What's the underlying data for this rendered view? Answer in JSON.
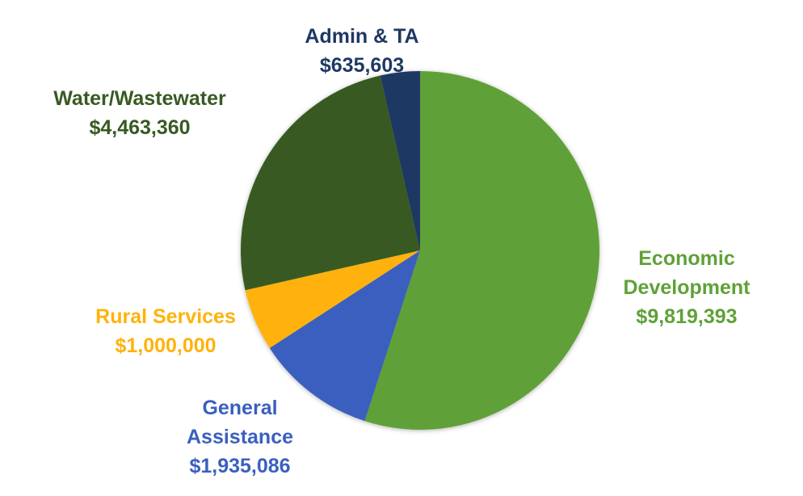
{
  "chart_data": {
    "type": "pie",
    "title": "",
    "start": "12 o'clock, clockwise",
    "slices": [
      {
        "name": "Economic Development",
        "name_lines": [
          "Economic",
          "Development"
        ],
        "value": 9819393,
        "label": "$9,819,393",
        "color": "#5FA137"
      },
      {
        "name": "General Assistance",
        "name_lines": [
          "General",
          "Assistance"
        ],
        "value": 1935086,
        "label": "$1,935,086",
        "color": "#3A5FBF"
      },
      {
        "name": "Rural Services",
        "name_lines": [
          "Rural Services"
        ],
        "value": 1000000,
        "label": "$1,000,000",
        "color": "#FFB20A"
      },
      {
        "name": "Water/Wastewater",
        "name_lines": [
          "Water/Wastewater"
        ],
        "value": 4463360,
        "label": "$4,463,360",
        "color": "#375A22"
      },
      {
        "name": "Admin & TA",
        "name_lines": [
          "Admin & TA"
        ],
        "value": 635603,
        "label": "$635,603",
        "color": "#1F3864"
      }
    ]
  }
}
